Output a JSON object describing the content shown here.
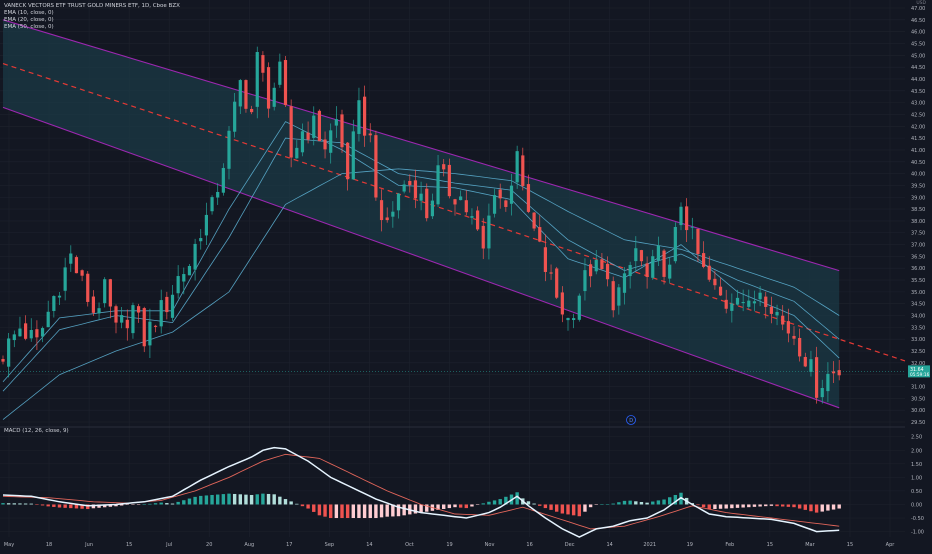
{
  "header": {
    "title": "VANECK VECTORS ETF TRUST GOLD MINERS ETF, 1D, Cboe BZX",
    "currency": "USD",
    "indicators": [
      "EMA (10, close, 0)",
      "EMA (20, close, 0)",
      "EMA (50, close, 0)"
    ]
  },
  "macd": {
    "label": "MACD (12, 26, close, 9)",
    "ticks": [
      "2.50",
      "2.00",
      "1.50",
      "1.00",
      "0.50",
      "0.00",
      "-0.50",
      "-1.00"
    ]
  },
  "price_badges": {
    "last": "31.64",
    "countdown": "05:59:16"
  },
  "event_marker": "D",
  "colors": {
    "background": "#131722",
    "up": "#26a69a",
    "down": "#ef5350",
    "channel_line": "#9c27b0",
    "channel_fill": "#1b3a46",
    "midline": "#e53935",
    "ema": "#5fb6d9",
    "macd_line": "#e6f4ff",
    "signal_line": "#e0655a",
    "badge": "#2962ff"
  },
  "chart_data": {
    "type": "candlestick",
    "price_axis": {
      "min": 29.5,
      "max": 47.0,
      "step": 0.5,
      "ticks": [
        "47.00",
        "46.50",
        "46.00",
        "45.50",
        "45.00",
        "44.50",
        "44.00",
        "43.50",
        "43.00",
        "42.50",
        "42.00",
        "41.50",
        "41.00",
        "40.50",
        "40.00",
        "39.50",
        "39.00",
        "38.50",
        "38.00",
        "37.50",
        "37.00",
        "36.50",
        "36.00",
        "35.50",
        "35.00",
        "34.50",
        "34.00",
        "33.50",
        "33.00",
        "32.50",
        "32.00",
        "31.50",
        "31.00",
        "30.50",
        "30.00",
        "29.50"
      ]
    },
    "x_labels": [
      "May",
      "18",
      "Jun",
      "15",
      "Jul",
      "20",
      "Aug",
      "17",
      "Sep",
      "14",
      "Oct",
      "19",
      "Nov",
      "16",
      "Dec",
      "14",
      "2021",
      "19",
      "Feb",
      "15",
      "Mar",
      "15",
      "Apr"
    ],
    "close_path": [
      [
        0,
        32.4
      ],
      [
        3,
        33.5
      ],
      [
        6,
        32.8
      ],
      [
        9,
        34.8
      ],
      [
        12,
        36.5
      ],
      [
        14,
        35.3
      ],
      [
        16,
        34.2
      ],
      [
        18,
        35.0
      ],
      [
        20,
        33.3
      ],
      [
        23,
        34.3
      ],
      [
        25,
        33.0
      ],
      [
        27,
        33.9
      ],
      [
        29,
        34.5
      ],
      [
        31,
        35.6
      ],
      [
        33,
        36.2
      ],
      [
        35,
        37.7
      ],
      [
        37,
        38.5
      ],
      [
        40,
        41.5
      ],
      [
        42,
        43.8
      ],
      [
        44,
        42.6
      ],
      [
        45,
        44.8
      ],
      [
        47,
        43.2
      ],
      [
        49,
        44.2
      ],
      [
        51,
        40.7
      ],
      [
        53,
        41.8
      ],
      [
        55,
        42.0
      ],
      [
        57,
        41.2
      ],
      [
        59,
        42.2
      ],
      [
        61,
        40.0
      ],
      [
        63,
        42.6
      ],
      [
        65,
        41.4
      ],
      [
        67,
        37.5
      ],
      [
        69,
        38.5
      ],
      [
        71,
        39.6
      ],
      [
        73,
        39.5
      ],
      [
        75,
        38.3
      ],
      [
        77,
        40.0
      ],
      [
        79,
        39.3
      ],
      [
        81,
        39.0
      ],
      [
        83,
        38.0
      ],
      [
        85,
        36.7
      ],
      [
        87,
        39.5
      ],
      [
        89,
        38.5
      ],
      [
        91,
        41.2
      ],
      [
        92,
        39.0
      ],
      [
        94,
        37.5
      ],
      [
        96,
        36.0
      ],
      [
        98,
        34.8
      ],
      [
        100,
        33.8
      ],
      [
        102,
        35.0
      ],
      [
        104,
        36.0
      ],
      [
        106,
        35.8
      ],
      [
        108,
        34.7
      ],
      [
        110,
        35.3
      ],
      [
        112,
        36.8
      ],
      [
        114,
        35.5
      ],
      [
        116,
        36.5
      ],
      [
        118,
        35.8
      ],
      [
        120,
        38.8
      ],
      [
        122,
        37.2
      ],
      [
        124,
        35.8
      ],
      [
        126,
        35.0
      ],
      [
        128,
        34.5
      ],
      [
        130,
        35.2
      ],
      [
        132,
        34.2
      ],
      [
        134,
        35.2
      ],
      [
        136,
        34.6
      ],
      [
        138,
        33.6
      ],
      [
        140,
        33.2
      ],
      [
        142,
        32.3
      ],
      [
        144,
        31.0
      ],
      [
        146,
        31.5
      ],
      [
        148,
        31.65
      ]
    ],
    "channel": {
      "upper": [
        [
          0,
          46.5
        ],
        [
          148,
          35.9
        ]
      ],
      "lower": [
        [
          0,
          42.8
        ],
        [
          148,
          30.1
        ]
      ],
      "midline": [
        [
          0,
          44.65
        ],
        [
          148,
          33.0
        ]
      ]
    },
    "ema_lines": [
      {
        "name": "EMA (10, close, 0)",
        "values": [
          [
            0,
            31.2
          ],
          [
            10,
            33.9
          ],
          [
            20,
            34.2
          ],
          [
            30,
            34.2
          ],
          [
            40,
            38.5
          ],
          [
            50,
            42.2
          ],
          [
            60,
            41.0
          ],
          [
            70,
            39.5
          ],
          [
            80,
            39.4
          ],
          [
            90,
            38.9
          ],
          [
            100,
            36.4
          ],
          [
            110,
            35.6
          ],
          [
            120,
            37.0
          ],
          [
            130,
            35.0
          ],
          [
            140,
            34.0
          ],
          [
            148,
            32.2
          ]
        ]
      },
      {
        "name": "EMA (20, close, 0)",
        "values": [
          [
            0,
            30.8
          ],
          [
            10,
            33.4
          ],
          [
            20,
            34.0
          ],
          [
            30,
            33.7
          ],
          [
            40,
            37.3
          ],
          [
            50,
            41.5
          ],
          [
            60,
            41.3
          ],
          [
            70,
            40.0
          ],
          [
            80,
            39.6
          ],
          [
            90,
            39.3
          ],
          [
            100,
            37.2
          ],
          [
            110,
            35.9
          ],
          [
            120,
            36.6
          ],
          [
            130,
            35.5
          ],
          [
            140,
            34.6
          ],
          [
            148,
            33.0
          ]
        ]
      },
      {
        "name": "EMA (50, close, 0)",
        "values": [
          [
            0,
            29.6
          ],
          [
            10,
            31.5
          ],
          [
            20,
            32.5
          ],
          [
            30,
            33.3
          ],
          [
            40,
            35.0
          ],
          [
            50,
            38.7
          ],
          [
            60,
            40.0
          ],
          [
            70,
            40.2
          ],
          [
            80,
            40.0
          ],
          [
            90,
            39.7
          ],
          [
            100,
            38.4
          ],
          [
            110,
            37.2
          ],
          [
            120,
            36.8
          ],
          [
            130,
            36.0
          ],
          [
            140,
            35.2
          ],
          [
            148,
            34.0
          ]
        ]
      }
    ],
    "macd_axis": {
      "min": -1.2,
      "max": 2.6
    },
    "macd_line": [
      [
        0,
        0.35
      ],
      [
        5,
        0.3
      ],
      [
        10,
        0.1
      ],
      [
        15,
        -0.05
      ],
      [
        20,
        0.0
      ],
      [
        25,
        0.1
      ],
      [
        30,
        0.3
      ],
      [
        35,
        0.9
      ],
      [
        40,
        1.4
      ],
      [
        44,
        1.75
      ],
      [
        46,
        2.0
      ],
      [
        48,
        2.1
      ],
      [
        50,
        2.05
      ],
      [
        54,
        1.6
      ],
      [
        58,
        1.0
      ],
      [
        62,
        0.6
      ],
      [
        66,
        0.2
      ],
      [
        70,
        -0.1
      ],
      [
        74,
        -0.3
      ],
      [
        78,
        -0.4
      ],
      [
        82,
        -0.5
      ],
      [
        86,
        -0.3
      ],
      [
        88,
        -0.1
      ],
      [
        91,
        0.3
      ],
      [
        93,
        -0.05
      ],
      [
        96,
        -0.5
      ],
      [
        99,
        -0.9
      ],
      [
        102,
        -1.2
      ],
      [
        105,
        -0.9
      ],
      [
        108,
        -0.8
      ],
      [
        111,
        -0.6
      ],
      [
        114,
        -0.5
      ],
      [
        117,
        -0.2
      ],
      [
        120,
        0.25
      ],
      [
        122,
        0.0
      ],
      [
        125,
        -0.35
      ],
      [
        128,
        -0.45
      ],
      [
        132,
        -0.5
      ],
      [
        136,
        -0.55
      ],
      [
        140,
        -0.7
      ],
      [
        144,
        -1.0
      ],
      [
        148,
        -0.95
      ]
    ],
    "signal_line": [
      [
        0,
        0.3
      ],
      [
        8,
        0.25
      ],
      [
        16,
        0.1
      ],
      [
        22,
        0.05
      ],
      [
        28,
        0.15
      ],
      [
        34,
        0.5
      ],
      [
        40,
        1.0
      ],
      [
        46,
        1.6
      ],
      [
        50,
        1.85
      ],
      [
        56,
        1.7
      ],
      [
        62,
        1.1
      ],
      [
        68,
        0.5
      ],
      [
        74,
        0.0
      ],
      [
        80,
        -0.35
      ],
      [
        86,
        -0.4
      ],
      [
        92,
        -0.1
      ],
      [
        98,
        -0.5
      ],
      [
        104,
        -0.9
      ],
      [
        110,
        -0.8
      ],
      [
        116,
        -0.45
      ],
      [
        122,
        -0.05
      ],
      [
        128,
        -0.3
      ],
      [
        134,
        -0.45
      ],
      [
        140,
        -0.6
      ],
      [
        148,
        -0.8
      ]
    ]
  }
}
